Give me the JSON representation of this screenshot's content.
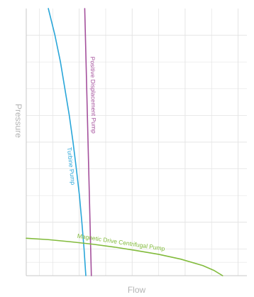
{
  "chart_data": {
    "type": "line",
    "title": "",
    "xlabel": "Flow",
    "ylabel": "Pressure",
    "xlim": [
      0,
      10
    ],
    "ylim": [
      0,
      10
    ],
    "grid": true,
    "legend": "none",
    "series": [
      {
        "name": "Turbine Pump",
        "color": "#29a6d9",
        "x": [
          1.0,
          1.3,
          1.55,
          1.75,
          1.95,
          2.12,
          2.27,
          2.41,
          2.52,
          2.62,
          2.7
        ],
        "y": [
          10.0,
          9.0,
          8.0,
          7.0,
          6.0,
          5.0,
          4.0,
          3.0,
          2.0,
          1.0,
          0.0
        ]
      },
      {
        "name": "Positive Displacement Pump",
        "color": "#a4509c",
        "x": [
          2.65,
          2.95
        ],
        "y": [
          10.0,
          0.0
        ]
      },
      {
        "name": "Magnetic Drive Centrifugal Pump",
        "color": "#82bb3c",
        "x": [
          0.0,
          1.0,
          2.0,
          3.0,
          4.0,
          5.0,
          6.0,
          7.0,
          8.0,
          8.5,
          8.9
        ],
        "y": [
          1.4,
          1.35,
          1.27,
          1.18,
          1.07,
          0.94,
          0.8,
          0.62,
          0.38,
          0.2,
          0.0
        ]
      }
    ]
  },
  "colors": {
    "grid": "#e4e4e4",
    "axis": "#c8c8c8",
    "axis_label": "#b4b4b4"
  }
}
